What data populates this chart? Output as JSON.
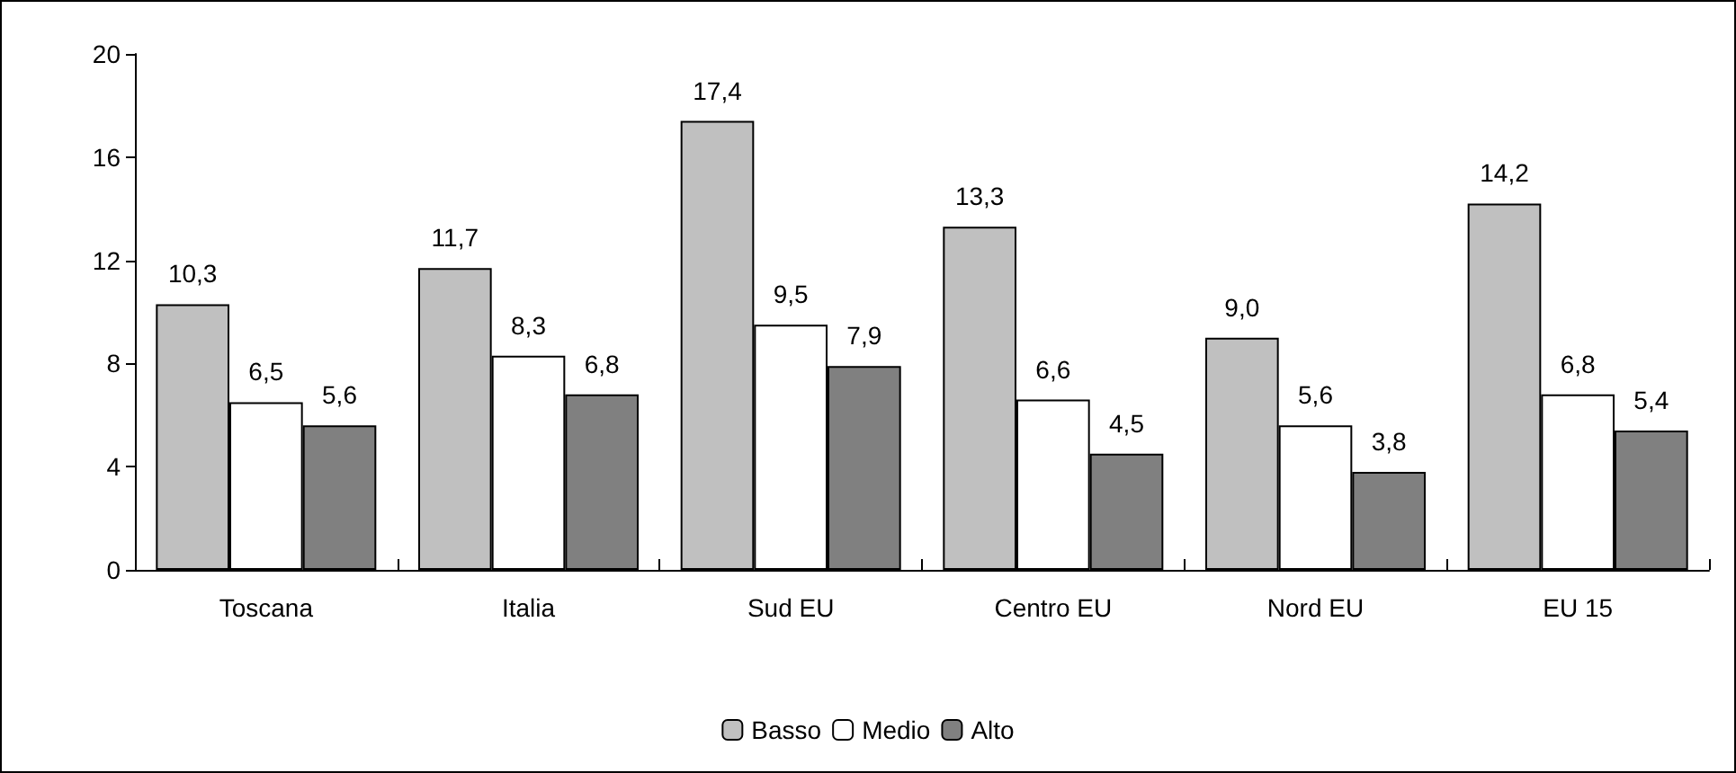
{
  "chart_data": {
    "type": "bar",
    "categories": [
      "Toscana",
      "Italia",
      "Sud EU",
      "Centro EU",
      "Nord EU",
      "EU 15"
    ],
    "series": [
      {
        "name": "Basso",
        "color": "#c0c0c0",
        "values": [
          10.3,
          11.7,
          17.4,
          13.3,
          9.0,
          14.2
        ],
        "value_labels": [
          "10,3",
          "11,7",
          "17,4",
          "13,3",
          "9,0",
          "14,2"
        ]
      },
      {
        "name": "Medio",
        "color": "#ffffff",
        "values": [
          6.5,
          8.3,
          9.5,
          6.6,
          5.6,
          6.8
        ],
        "value_labels": [
          "6,5",
          "8,3",
          "9,5",
          "6,6",
          "5,6",
          "6,8"
        ]
      },
      {
        "name": "Alto",
        "color": "#808080",
        "values": [
          5.6,
          6.8,
          7.9,
          4.5,
          3.8,
          5.4
        ],
        "value_labels": [
          "5,6",
          "6,8",
          "7,9",
          "4,5",
          "3,8",
          "5,4"
        ]
      }
    ],
    "ylim": [
      0,
      20
    ],
    "yticks": [
      0,
      4,
      8,
      12,
      16,
      20
    ],
    "grid": false,
    "legend": "bottom"
  }
}
